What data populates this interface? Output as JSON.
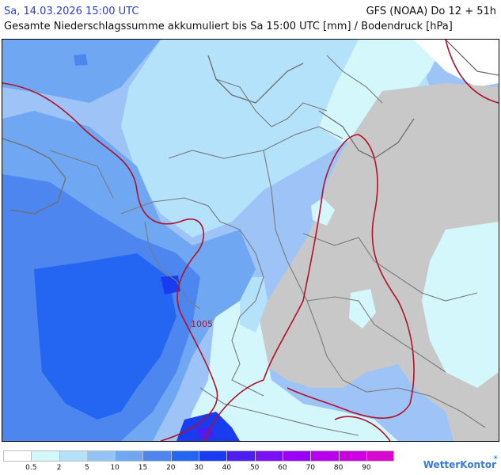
{
  "header": {
    "valid_time": "Sa, 14.03.2026 15:00 UTC",
    "model_run": "GFS (NOAA) Do 12 + 51h",
    "subtitle": "Gesamte Niederschlagssumme akkumuliert bis Sa 15:00 UTC [mm] / Bodendruck [hPa]"
  },
  "map": {
    "isobar_label": "1005",
    "colors": {
      "no_data": "#c8c8c8",
      "isobar": "#b0122a",
      "borders": "#7a7a7a"
    }
  },
  "legend": {
    "swatches": [
      {
        "color": "#ffffff"
      },
      {
        "color": "#d4f7fb"
      },
      {
        "color": "#b4e2fb"
      },
      {
        "color": "#93c5f7"
      },
      {
        "color": "#6fa7f2"
      },
      {
        "color": "#4c86ee"
      },
      {
        "color": "#2466f2"
      },
      {
        "color": "#1a3cf0"
      },
      {
        "color": "#4c1ef2"
      },
      {
        "color": "#7a10f4"
      },
      {
        "color": "#9c00f5"
      },
      {
        "color": "#b800ee"
      },
      {
        "color": "#cc00e0"
      },
      {
        "color": "#d80ad0"
      }
    ],
    "labels": [
      "0.5",
      "2",
      "5",
      "10",
      "15",
      "20",
      "30",
      "40",
      "50",
      "60",
      "70",
      "80",
      "90"
    ],
    "brand": "WetterKontor",
    "brand_icon": "cloud-sun-icon"
  }
}
